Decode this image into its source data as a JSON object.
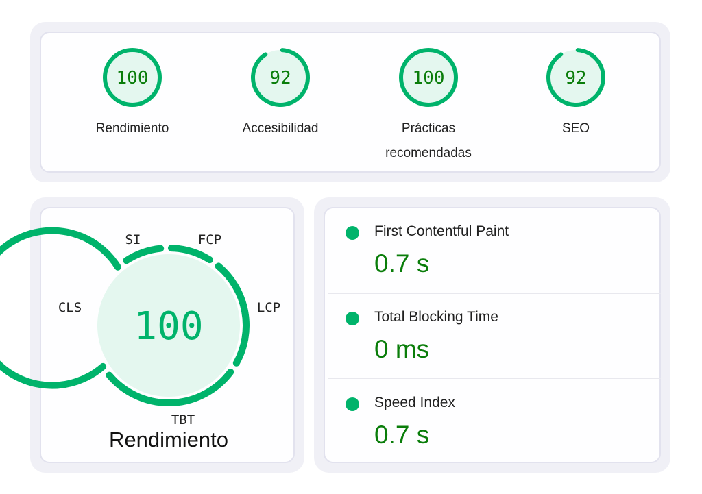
{
  "colors": {
    "ring": "#00b36b",
    "fill": "#e4f7ef",
    "score_text": "#0a7d0a",
    "big_score_text": "#00b36b"
  },
  "categories": [
    {
      "score": "100",
      "value": 100,
      "label": "Rendimiento"
    },
    {
      "score": "92",
      "value": 92,
      "label": "Accesibilidad"
    },
    {
      "score": "100",
      "value": 100,
      "label": "Prácticas recomendadas"
    },
    {
      "score": "92",
      "value": 92,
      "label": "SEO"
    }
  ],
  "performance": {
    "score": "100",
    "title": "Rendimiento",
    "segments": [
      "SI",
      "FCP",
      "LCP",
      "TBT",
      "CLS"
    ]
  },
  "metrics": [
    {
      "name": "First Contentful Paint",
      "value": "0.7 s"
    },
    {
      "name": "Total Blocking Time",
      "value": "0 ms"
    },
    {
      "name": "Speed Index",
      "value": "0.7 s"
    }
  ]
}
